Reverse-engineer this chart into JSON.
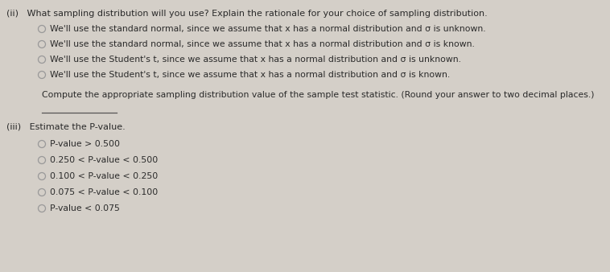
{
  "background_color": "#d4cfc8",
  "title_ii": "(ii)   What sampling distribution will you use? Explain the rationale for your choice of sampling distribution.",
  "options_ii": [
    "We'll use the standard normal, since we assume that x has a normal distribution and σ is unknown.",
    "We'll use the standard normal, since we assume that x has a normal distribution and σ is known.",
    "We'll use the Student's t, since we assume that x has a normal distribution and σ is unknown.",
    "We'll use the Student's t, since we assume that x has a normal distribution and σ is known."
  ],
  "compute_text": "Compute the appropriate sampling distribution value of the sample test statistic. (Round your answer to two decimal places.)",
  "title_iii": "(iii)   Estimate the P-value.",
  "options_iii": [
    "P-value > 0.500",
    "0.250 < P-value < 0.500",
    "0.100 < P-value < 0.250",
    "0.075 < P-value < 0.100",
    "P-value < 0.075"
  ],
  "text_color": "#2a2a2a",
  "radio_color": "#999999",
  "font_size": 7.8,
  "title_font_size": 8.0,
  "line_color": "#555555"
}
